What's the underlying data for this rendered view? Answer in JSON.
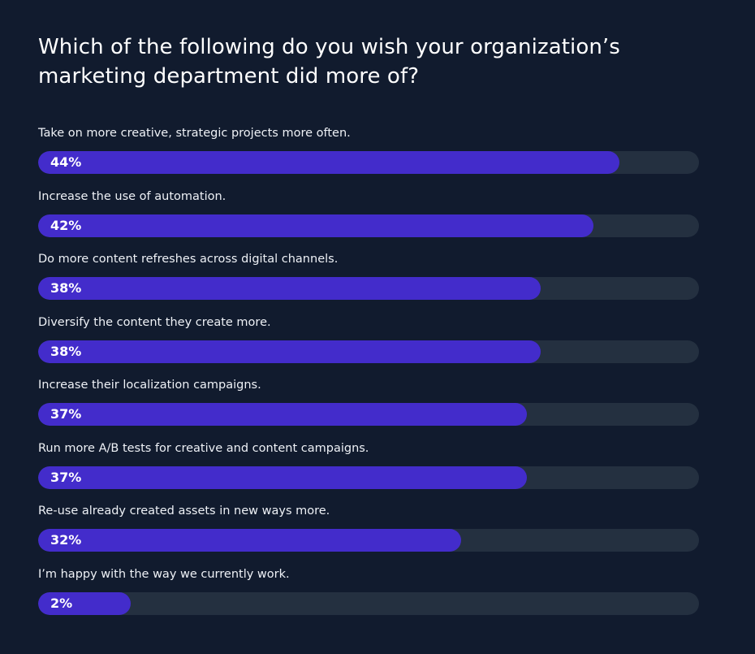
{
  "chart_data": {
    "type": "bar",
    "orientation": "horizontal",
    "title": "Which of the following do you wish your organization’s marketing department did more of?",
    "categories": [
      "Take on more creative, strategic projects more often.",
      "Increase the use of automation.",
      "Do more content refreshes across digital channels.",
      "Diversify the content they create more.",
      "Increase their localization campaigns.",
      "Run more A/B tests for creative and content campaigns.",
      "Re-use already created assets in new ways more.",
      "I’m happy with the way we currently work."
    ],
    "values": [
      44,
      42,
      38,
      38,
      37,
      37,
      32,
      2
    ],
    "value_labels": [
      "44%",
      "42%",
      "38%",
      "38%",
      "37%",
      "37%",
      "32%",
      "2%"
    ],
    "xlim": [
      0,
      50
    ],
    "unit": "%"
  },
  "colors": {
    "background": "#111b2e",
    "track": "#243040",
    "fill": "#432ccb"
  }
}
